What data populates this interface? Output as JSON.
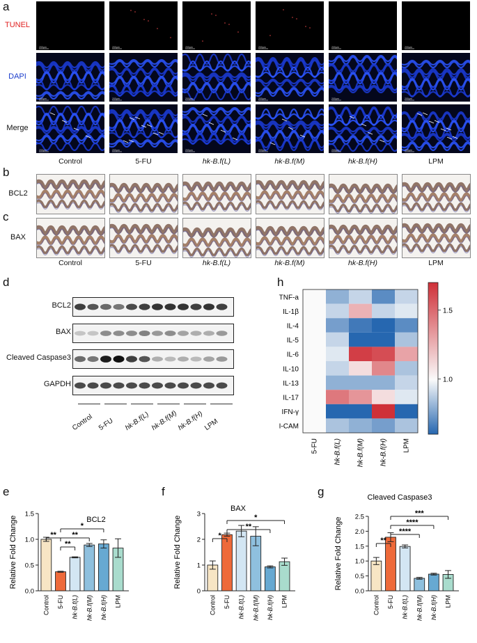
{
  "panels": {
    "a": "a",
    "b": "b",
    "c": "c",
    "d": "d",
    "e": "e",
    "f": "f",
    "g": "g",
    "h": "h"
  },
  "a": {
    "rows": [
      "TUNEL",
      "DAPI",
      "Merge"
    ],
    "row_colors": [
      "#e02020",
      "#1a3ccc",
      "#111111"
    ],
    "scale_text": "200μm"
  },
  "groups": [
    "Control",
    "5-FU",
    "hk-B.f(L)",
    "hk-B.f(M)",
    "hk-B.f(H)",
    "LPM"
  ],
  "italic_groups": [
    false,
    false,
    true,
    true,
    true,
    false
  ],
  "b": {
    "label": "BCL2"
  },
  "c": {
    "label": "BAX"
  },
  "d": {
    "rows": [
      "BCL2",
      "BAX",
      "Cleaved Caspase3",
      "GAPDH"
    ],
    "groups": [
      "Control",
      "5-FU",
      "hk-B.f(L)",
      "hk-B.f(M)",
      "hk-B.f(H)",
      "LPM"
    ]
  },
  "h": {
    "rows": [
      "TNF-a",
      "IL-1β",
      "IL-4",
      "IL-5",
      "IL-6",
      "IL-10",
      "IL-13",
      "IL-17",
      "IFN-γ",
      "I-CAM"
    ],
    "cols": [
      "5-FU",
      "hk-B.f(L)",
      "hk-B.f(M)",
      "hk-B.f(H)",
      "LPM"
    ],
    "colorbar_ticks": [
      "1.5",
      "1.0"
    ]
  },
  "chart_data": [
    {
      "type": "heatmap",
      "rows": [
        "TNF-a",
        "IL-1β",
        "IL-4",
        "IL-5",
        "IL-6",
        "IL-10",
        "IL-13",
        "IL-17",
        "IFN-γ",
        "I-CAM"
      ],
      "cols": [
        "5-FU",
        "hk-B.f(L)",
        "hk-B.f(M)",
        "hk-B.f(H)",
        "LPM"
      ],
      "values": [
        [
          1.0,
          0.8,
          0.9,
          0.7,
          0.9
        ],
        [
          1.0,
          0.9,
          1.25,
          0.9,
          0.95
        ],
        [
          1.0,
          0.75,
          0.65,
          0.6,
          0.7
        ],
        [
          1.0,
          0.9,
          0.6,
          0.55,
          0.85
        ],
        [
          1.0,
          0.95,
          1.65,
          1.6,
          1.3
        ],
        [
          1.0,
          0.9,
          1.1,
          1.4,
          0.85
        ],
        [
          1.0,
          0.8,
          0.8,
          0.8,
          0.9
        ],
        [
          1.0,
          1.45,
          1.35,
          1.1,
          0.95
        ],
        [
          1.0,
          0.6,
          0.6,
          1.7,
          0.6
        ],
        [
          1.0,
          0.85,
          0.8,
          0.75,
          0.85
        ]
      ],
      "vmin": 0.6,
      "vmax": 1.7
    },
    {
      "type": "bar",
      "title": "BCL2",
      "ylabel": "Relative Fold Change",
      "categories": [
        "Control",
        "5-FU",
        "hk-B.f(L)",
        "hk-B.f(M)",
        "hk-B.f(H)",
        "LPM"
      ],
      "values": [
        1.0,
        0.37,
        0.65,
        0.89,
        0.91,
        0.83
      ],
      "errors": [
        0.04,
        0.01,
        0.01,
        0.03,
        0.08,
        0.18
      ],
      "ylim": [
        0,
        1.5
      ],
      "yticks": [
        "0.0",
        "0.5",
        "1.0",
        "1.5"
      ],
      "colors": [
        "#f7e5c4",
        "#ee6a3a",
        "#d3e6f3",
        "#8fc0de",
        "#67a9d2",
        "#a9dccd"
      ],
      "sig": [
        {
          "from": 0,
          "to": 1,
          "label": "**",
          "level": 1
        },
        {
          "from": 1,
          "to": 2,
          "label": "**",
          "level": 0
        },
        {
          "from": 1,
          "to": 3,
          "label": "**",
          "level": 1
        },
        {
          "from": 1,
          "to": 4,
          "label": "*",
          "level": 2
        }
      ]
    },
    {
      "type": "bar",
      "title": "BAX",
      "ylabel": "Relative Fold Change",
      "categories": [
        "Control",
        "5-FU",
        "hk-B.f(L)",
        "hk-B.f(M)",
        "hk-B.f(H)",
        "LPM"
      ],
      "values": [
        1.0,
        2.18,
        2.32,
        2.12,
        0.93,
        1.13
      ],
      "errors": [
        0.16,
        0.06,
        0.22,
        0.37,
        0.04,
        0.14
      ],
      "ylim": [
        0,
        3
      ],
      "yticks": [
        "0",
        "1",
        "2",
        "3"
      ],
      "colors": [
        "#f7e5c4",
        "#ee6a3a",
        "#d3e6f3",
        "#8fc0de",
        "#67a9d2",
        "#a9dccd"
      ],
      "sig": [
        {
          "from": 0,
          "to": 1,
          "label": "*",
          "level": 0
        },
        {
          "from": 1,
          "to": 4,
          "label": "**",
          "level": 1
        },
        {
          "from": 1,
          "to": 5,
          "label": "*",
          "level": 2
        }
      ]
    },
    {
      "type": "bar",
      "title": "Cleaved Caspase3",
      "ylabel": "Relative Fold Change",
      "categories": [
        "Control",
        "5-FU",
        "hk-B.f(L)",
        "hk-B.f(M)",
        "hk-B.f(H)",
        "LPM"
      ],
      "values": [
        1.0,
        1.8,
        1.49,
        0.42,
        0.56,
        0.55
      ],
      "errors": [
        0.12,
        0.15,
        0.05,
        0.03,
        0.03,
        0.13
      ],
      "ylim": [
        0,
        2.5
      ],
      "yticks": [
        "0.0",
        "0.5",
        "1.0",
        "1.5",
        "2.0",
        "2.5"
      ],
      "colors": [
        "#f7e5c4",
        "#ee6a3a",
        "#d3e6f3",
        "#8fc0de",
        "#67a9d2",
        "#a9dccd"
      ],
      "sig": [
        {
          "from": 0,
          "to": 1,
          "label": "**",
          "level": 0
        },
        {
          "from": 1,
          "to": 3,
          "label": "****",
          "level": 1
        },
        {
          "from": 1,
          "to": 4,
          "label": "****",
          "level": 2
        },
        {
          "from": 1,
          "to": 5,
          "label": "***",
          "level": 3
        }
      ]
    }
  ]
}
